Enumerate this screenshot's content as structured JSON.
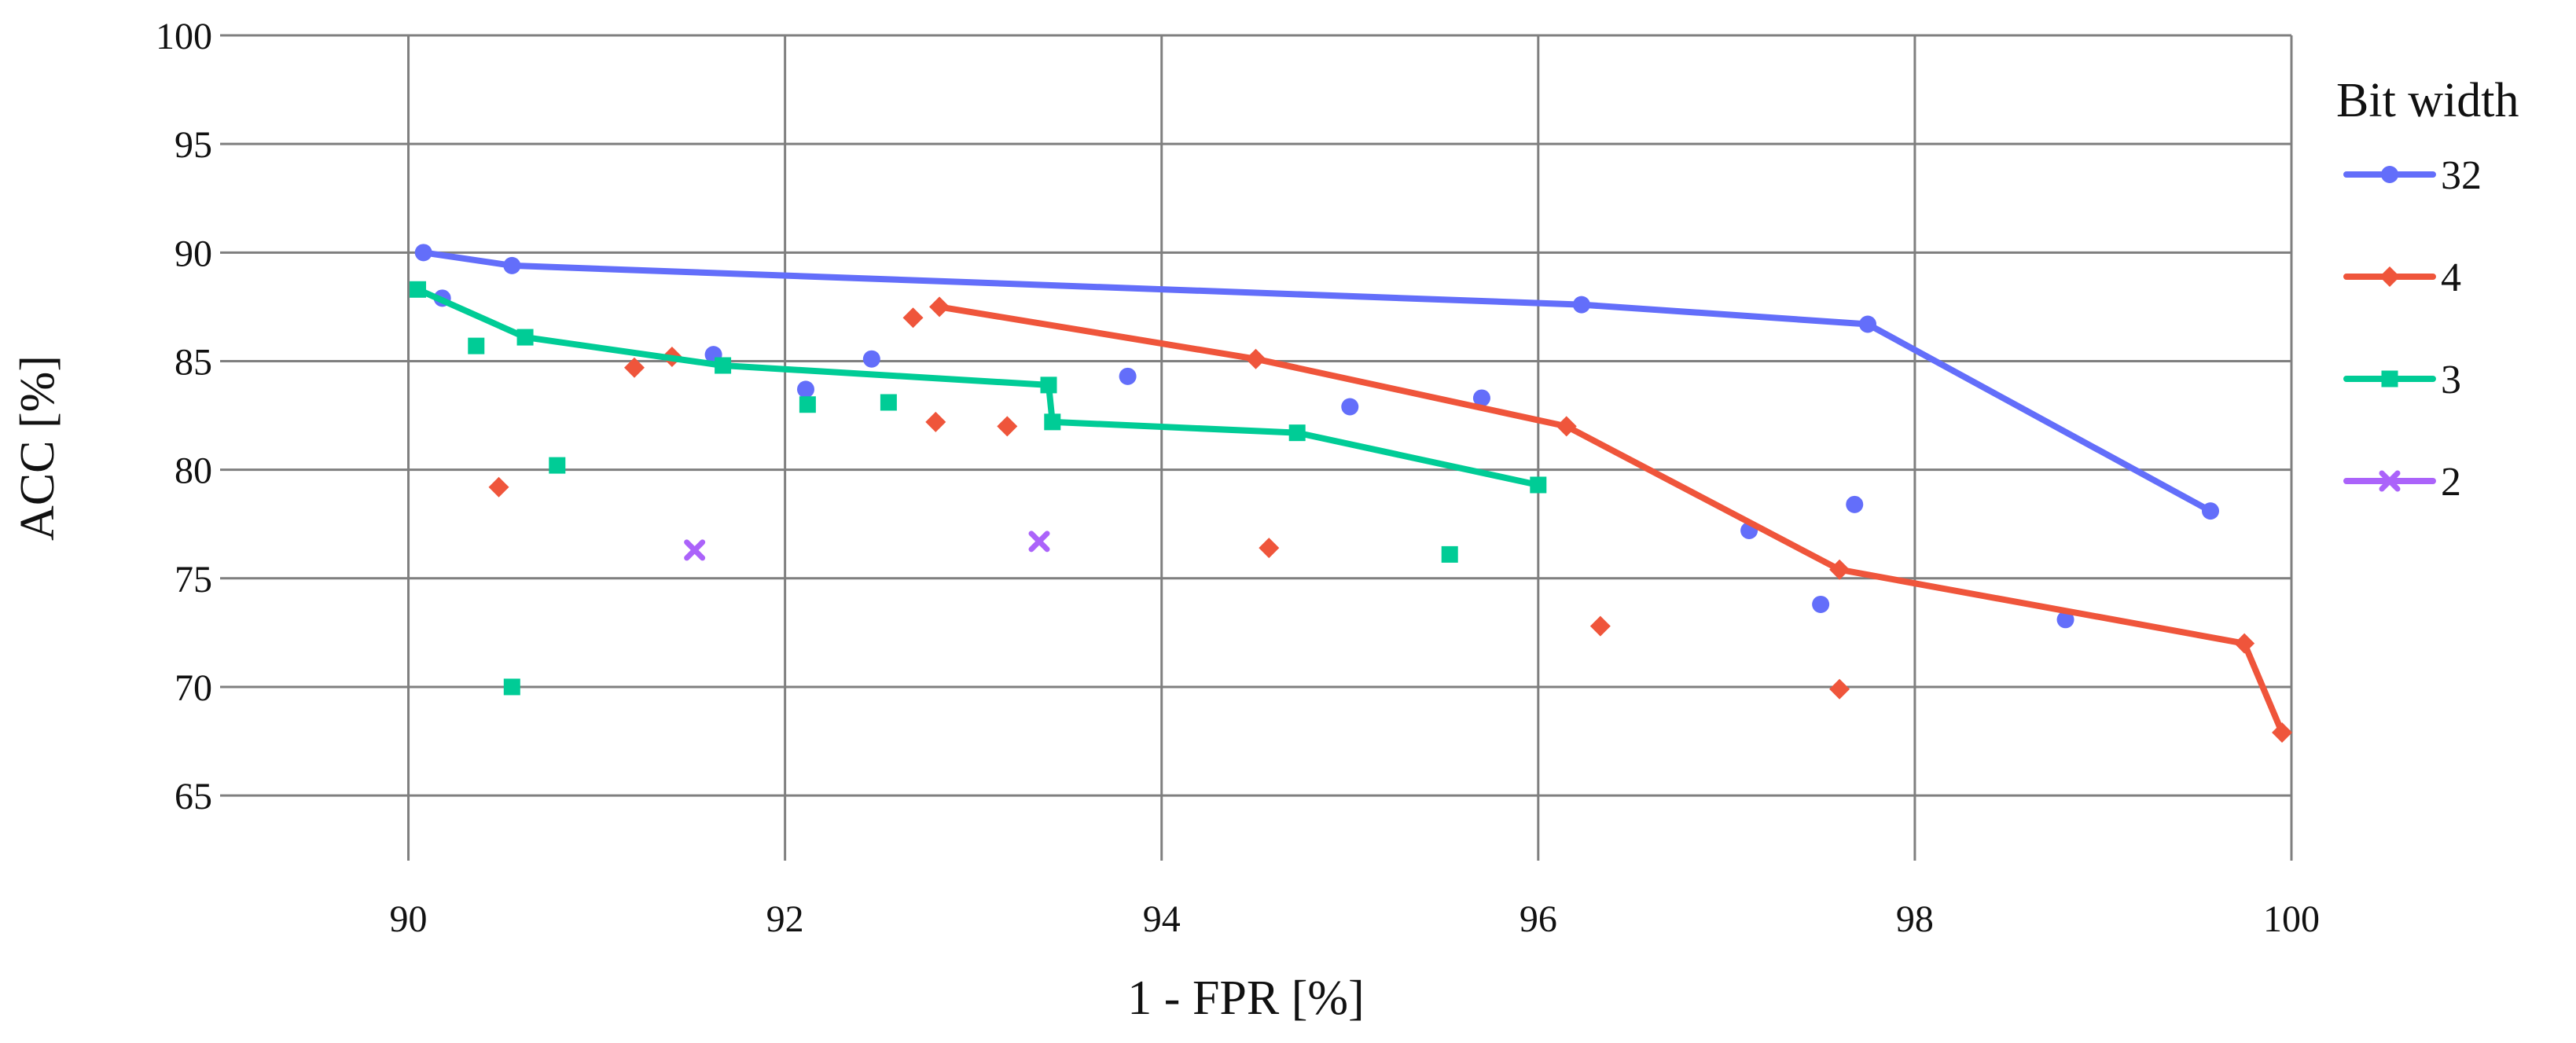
{
  "chart_data": {
    "type": "scatter",
    "title": "",
    "xlabel": "1 - FPR [%]",
    "ylabel": "ACC [%]",
    "xlim": [
      89,
      100
    ],
    "ylim": [
      62,
      100
    ],
    "xticks": [
      90,
      92,
      94,
      96,
      98,
      100
    ],
    "yticks": [
      65,
      70,
      75,
      80,
      85,
      90,
      95,
      100
    ],
    "grid": true,
    "legend": {
      "title": "Bit width",
      "position": "right"
    },
    "series": [
      {
        "name": "32",
        "color": "#636efa",
        "marker": "circle",
        "frontier": [
          [
            90.08,
            90.0
          ],
          [
            90.55,
            89.4
          ],
          [
            96.23,
            87.6
          ],
          [
            97.75,
            86.7
          ],
          [
            99.57,
            78.1
          ]
        ],
        "points": [
          [
            90.18,
            87.9
          ],
          [
            91.62,
            85.3
          ],
          [
            92.11,
            83.7
          ],
          [
            92.46,
            85.1
          ],
          [
            93.82,
            84.3
          ],
          [
            95.0,
            82.9
          ],
          [
            95.7,
            83.3
          ],
          [
            97.12,
            77.2
          ],
          [
            97.5,
            73.8
          ],
          [
            97.68,
            78.4
          ],
          [
            98.8,
            73.1
          ]
        ]
      },
      {
        "name": "4",
        "color": "#ef553b",
        "marker": "diamond",
        "frontier": [
          [
            92.82,
            87.5
          ],
          [
            94.5,
            85.1
          ],
          [
            96.15,
            82.0
          ],
          [
            97.6,
            75.4
          ],
          [
            99.75,
            72.0
          ],
          [
            99.95,
            67.9
          ]
        ],
        "points": [
          [
            90.48,
            79.2
          ],
          [
            91.2,
            84.7
          ],
          [
            91.4,
            85.2
          ],
          [
            92.68,
            87.0
          ],
          [
            92.8,
            82.2
          ],
          [
            93.18,
            82.0
          ],
          [
            94.57,
            76.4
          ],
          [
            96.33,
            72.8
          ],
          [
            97.6,
            69.9
          ]
        ]
      },
      {
        "name": "3",
        "color": "#00cc96",
        "marker": "square",
        "frontier": [
          [
            90.05,
            88.3
          ],
          [
            90.62,
            86.1
          ],
          [
            91.67,
            84.8
          ],
          [
            93.4,
            83.9
          ],
          [
            93.42,
            82.2
          ],
          [
            94.72,
            81.7
          ],
          [
            96.0,
            79.3
          ]
        ],
        "points": [
          [
            90.36,
            85.7
          ],
          [
            90.55,
            70.0
          ],
          [
            90.79,
            80.2
          ],
          [
            92.12,
            83.0
          ],
          [
            92.55,
            83.1
          ],
          [
            95.53,
            76.1
          ]
        ]
      },
      {
        "name": "2",
        "color": "#ab63fa",
        "marker": "x",
        "frontier": [],
        "points": [
          [
            91.52,
            76.3
          ],
          [
            93.35,
            76.7
          ]
        ]
      }
    ]
  }
}
